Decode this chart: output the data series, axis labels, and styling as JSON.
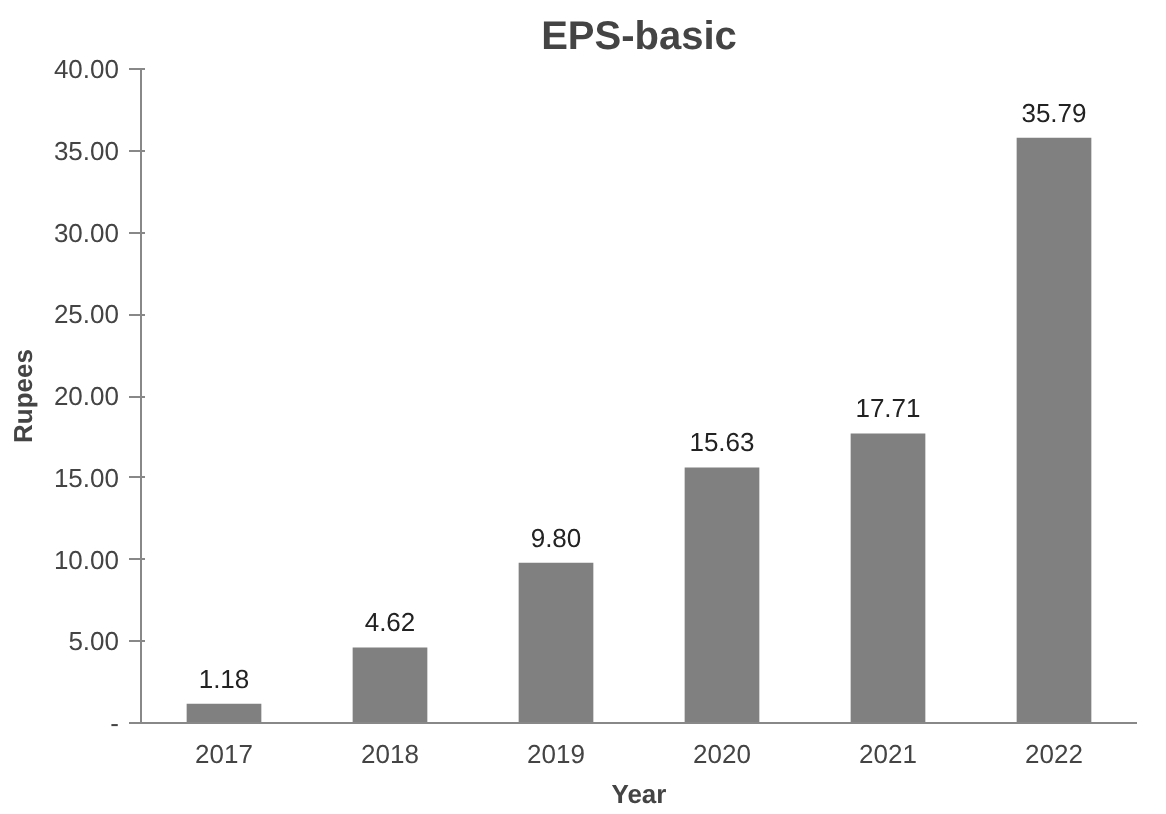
{
  "chart_data": {
    "type": "bar",
    "title": "EPS-basic",
    "xlabel": "Year",
    "ylabel": "Rupees",
    "categories": [
      "2017",
      "2018",
      "2019",
      "2020",
      "2021",
      "2022"
    ],
    "values": [
      1.18,
      4.62,
      9.8,
      15.63,
      17.71,
      35.79
    ],
    "value_labels": [
      "1.18",
      "4.62",
      "9.80",
      "15.63",
      "17.71",
      "35.79"
    ],
    "color": "#808080",
    "ylim": [
      0,
      40
    ],
    "yticks": [
      {
        "value": 0,
        "label": "-"
      },
      {
        "value": 5,
        "label": "5.00"
      },
      {
        "value": 10,
        "label": "10.00"
      },
      {
        "value": 15,
        "label": "15.00"
      },
      {
        "value": 20,
        "label": "20.00"
      },
      {
        "value": 25,
        "label": "25.00"
      },
      {
        "value": 30,
        "label": "30.00"
      },
      {
        "value": 35,
        "label": "35.00"
      },
      {
        "value": 40,
        "label": "40.00"
      }
    ],
    "grid": false
  }
}
